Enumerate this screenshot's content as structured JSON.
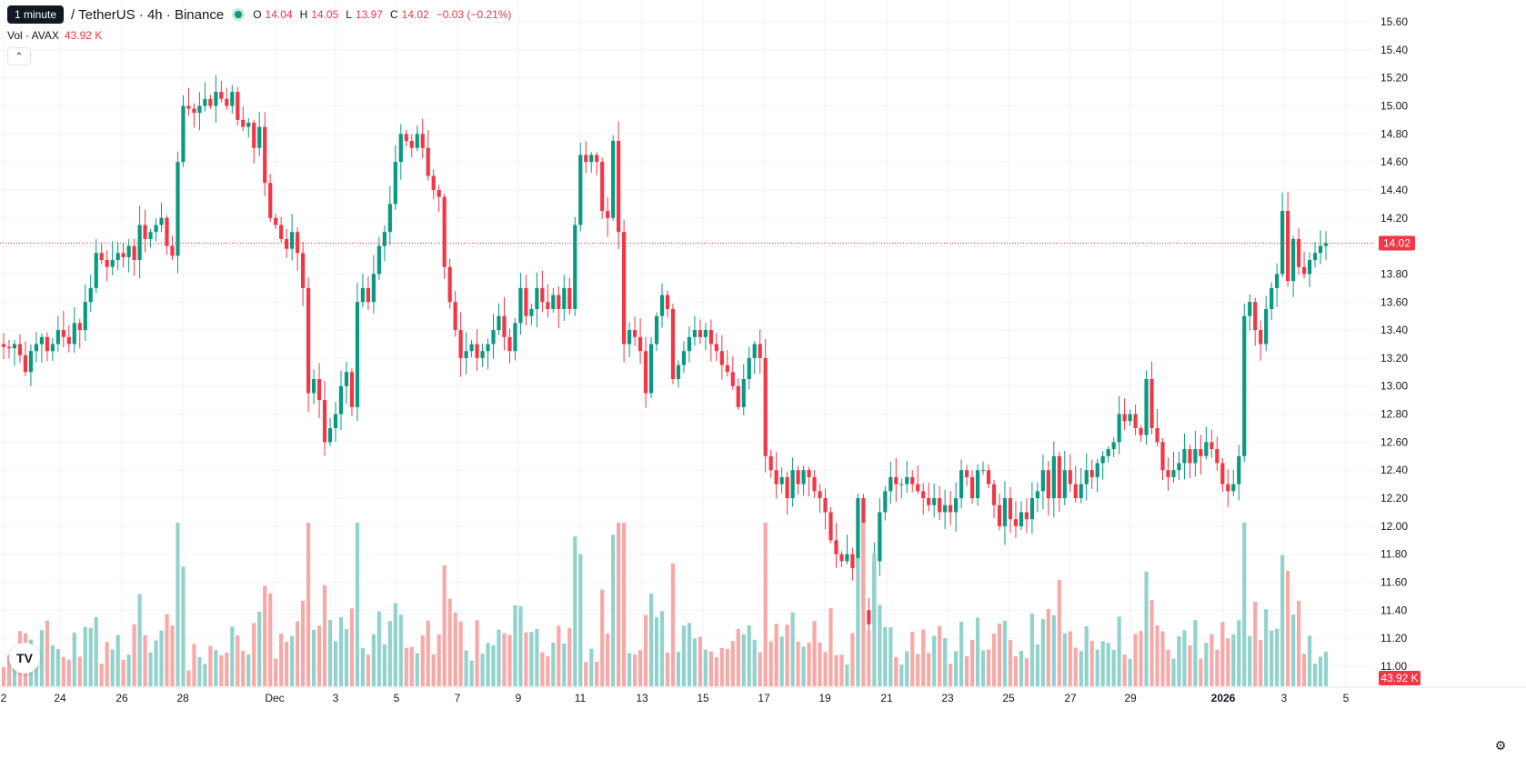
{
  "legend": {
    "tooltip": "1 minute",
    "symbol": "/ TetherUS · 4h · Binance",
    "ohlc": [
      {
        "key": "O",
        "value": "14.04"
      },
      {
        "key": "H",
        "value": "14.05"
      },
      {
        "key": "L",
        "value": "13.97"
      },
      {
        "key": "C",
        "value": "14.02"
      },
      {
        "key": "",
        "value": "−0.03 (−0.21%)"
      }
    ]
  },
  "volume_legend": {
    "label": "Vol · AVAX",
    "value": "43.92 K"
  },
  "price_axis": {
    "labels": [
      "15.60",
      "15.40",
      "15.20",
      "15.00",
      "14.80",
      "14.60",
      "14.40",
      "14.20",
      "14.00",
      "13.80",
      "13.60",
      "13.40",
      "13.20",
      "13.00",
      "12.80",
      "12.60",
      "12.40",
      "12.20",
      "12.00",
      "11.80",
      "11.60",
      "11.40",
      "11.20",
      "11.00"
    ]
  },
  "last_price": {
    "label": "14.02",
    "value": 14.02
  },
  "last_volume": {
    "label": "43.92 K"
  },
  "time_axis": {
    "labels": [
      "2",
      "24",
      "26",
      "28",
      "Dec",
      "3",
      "5",
      "7",
      "9",
      "11",
      "13",
      "15",
      "17",
      "19",
      "21",
      "23",
      "25",
      "27",
      "29",
      "2026",
      "3",
      "5"
    ]
  },
  "colors": {
    "up": "#089981",
    "down": "#f23645",
    "up_vol": "#92d2cc",
    "down_vol": "#f7a9a7",
    "grid": "#f0f3fa",
    "text": "#131722"
  },
  "icons": {
    "logo": "tradingview-logo-icon",
    "settings": "gear-icon",
    "collapse": "chevron-up-icon"
  },
  "chart_data": {
    "type": "candlestick",
    "interval": "4h",
    "ylim": [
      10.9,
      15.7
    ],
    "x_start": "Nov 22",
    "y": [
      13.28,
      13.27,
      13.3,
      13.22,
      13.1,
      13.25,
      13.3,
      13.35,
      13.25,
      13.3,
      13.4,
      13.35,
      13.3,
      13.45,
      13.4,
      13.6,
      13.7,
      13.95,
      13.9,
      13.85,
      13.9,
      13.95,
      13.92,
      14.0,
      13.9,
      14.15,
      14.05,
      14.1,
      14.15,
      14.2,
      14.0,
      13.93,
      14.6,
      15.0,
      14.98,
      14.95,
      15.0,
      15.05,
      15.0,
      15.1,
      15.05,
      15.0,
      15.1,
      14.9,
      14.85,
      14.88,
      14.7,
      14.85,
      14.45,
      14.2,
      14.15,
      14.05,
      13.98,
      14.1,
      13.95,
      13.7,
      12.95,
      13.05,
      12.9,
      12.6,
      12.7,
      12.8,
      13.0,
      13.1,
      12.85,
      13.6,
      13.7,
      13.6,
      13.8,
      14.0,
      14.1,
      14.3,
      14.6,
      14.8,
      14.75,
      14.7,
      14.8,
      14.7,
      14.5,
      14.4,
      14.35,
      13.85,
      13.6,
      13.4,
      13.2,
      13.25,
      13.3,
      13.2,
      13.25,
      13.3,
      13.4,
      13.5,
      13.35,
      13.25,
      13.45,
      13.7,
      13.5,
      13.55,
      13.7,
      13.6,
      13.55,
      13.65,
      13.55,
      13.7,
      13.55,
      14.15,
      14.65,
      14.6,
      14.65,
      14.6,
      14.25,
      14.2,
      14.75,
      14.1,
      13.3,
      13.4,
      13.35,
      13.25,
      12.95,
      13.3,
      13.5,
      13.65,
      13.55,
      13.05,
      13.15,
      13.25,
      13.35,
      13.4,
      13.35,
      13.4,
      13.3,
      13.25,
      13.15,
      13.1,
      13.0,
      12.85,
      13.05,
      13.2,
      13.3,
      13.2,
      12.5,
      12.4,
      12.3,
      12.35,
      12.2,
      12.4,
      12.3,
      12.4,
      12.35,
      12.25,
      12.2,
      12.1,
      11.9,
      11.8,
      11.75,
      11.8,
      11.7,
      12.2,
      11.4,
      11.3,
      11.75,
      12.1,
      12.25,
      12.35,
      12.3,
      12.3,
      12.35,
      12.3,
      12.25,
      12.2,
      12.15,
      12.2,
      12.1,
      12.15,
      12.1,
      12.2,
      12.4,
      12.35,
      12.2,
      12.4,
      12.4,
      12.3,
      12.15,
      12.0,
      12.2,
      12.05,
      12.0,
      12.1,
      12.05,
      12.2,
      12.25,
      12.4,
      12.2,
      12.5,
      12.2,
      12.4,
      12.3,
      12.2,
      12.3,
      12.4,
      12.35,
      12.45,
      12.5,
      12.55,
      12.6,
      12.8,
      12.75,
      12.8,
      12.7,
      12.65,
      13.05,
      12.7,
      12.6,
      12.4,
      12.35,
      12.4,
      12.45,
      12.55,
      12.45,
      12.55,
      12.5,
      12.6,
      12.55,
      12.45,
      12.3,
      12.25,
      12.3,
      12.5,
      13.5,
      13.6,
      13.4,
      13.3,
      13.55,
      13.7,
      13.8,
      14.25,
      13.75,
      14.05,
      13.85,
      13.8,
      13.9,
      13.95,
      14.0,
      14.02
    ],
    "volume_last": 43920
  }
}
